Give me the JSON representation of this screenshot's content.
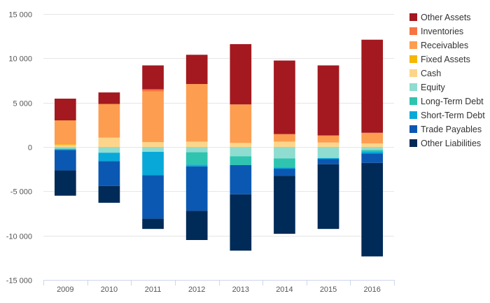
{
  "chart_data": {
    "type": "bar",
    "stacked": true,
    "categories": [
      "2009",
      "2010",
      "2011",
      "2012",
      "2013",
      "2014",
      "2015",
      "2016"
    ],
    "ylim": [
      -15000,
      15000
    ],
    "yticks": [
      15000,
      10000,
      5000,
      0,
      -5000,
      -10000,
      -15000
    ],
    "ytick_labels": [
      "15 000",
      "10 000",
      "5 000",
      "0",
      "-5 000",
      "-10 000",
      "-15 000"
    ],
    "grid": true,
    "legend_position": "right",
    "legend_order": [
      "Other Assets",
      "Inventories",
      "Receivables",
      "Fixed Assets",
      "Cash",
      "Equity",
      "Long-Term Debt",
      "Short-Term Debt",
      "Trade Payables",
      "Other Liabilities"
    ],
    "series": [
      {
        "name": "Cash",
        "color": "#fdd58a",
        "values": [
          200,
          1050,
          550,
          600,
          450,
          600,
          500,
          400
        ]
      },
      {
        "name": "Fixed Assets",
        "color": "#f5b700",
        "values": [
          100,
          0,
          0,
          0,
          0,
          0,
          0,
          0
        ]
      },
      {
        "name": "Receivables",
        "color": "#fd9d50",
        "values": [
          2700,
          3800,
          5700,
          6500,
          4350,
          850,
          800,
          1200
        ]
      },
      {
        "name": "Inventories",
        "color": "#f77440",
        "values": [
          0,
          0,
          250,
          0,
          0,
          0,
          0,
          0
        ]
      },
      {
        "name": "Other Assets",
        "color": "#a3191f",
        "values": [
          2450,
          1300,
          2700,
          3300,
          6800,
          8300,
          7900,
          10500
        ]
      },
      {
        "name": "Equity",
        "color": "#8fdcd0",
        "values": [
          -200,
          -650,
          -550,
          -600,
          -1050,
          -1300,
          -1250,
          -350
        ]
      },
      {
        "name": "Long-Term Debt",
        "color": "#2ec4b0",
        "values": [
          -50,
          0,
          0,
          -1400,
          -1000,
          -1000,
          0,
          -150
        ]
      },
      {
        "name": "Short-Term Debt",
        "color": "#08a9d9",
        "values": [
          -100,
          -950,
          -2650,
          -200,
          0,
          -150,
          -100,
          -250
        ]
      },
      {
        "name": "Trade Payables",
        "color": "#0b58b2",
        "values": [
          -2300,
          -2800,
          -4900,
          -5000,
          -3300,
          -800,
          -600,
          -1050
        ]
      },
      {
        "name": "Other Liabilities",
        "color": "#002a57",
        "values": [
          -2850,
          -1900,
          -1150,
          -3300,
          -6350,
          -6550,
          -7300,
          -10550
        ]
      }
    ]
  }
}
